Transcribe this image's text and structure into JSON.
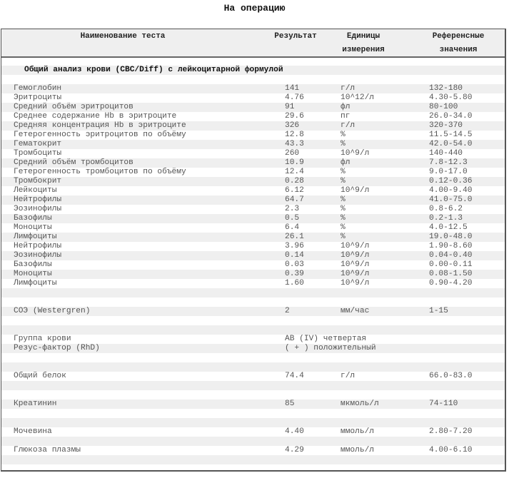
{
  "title": "На операцию",
  "header": {
    "name": "Наименование теста",
    "result": "Результат",
    "units_1": "Единицы",
    "units_2": "измерения",
    "ref_1": "Референсные",
    "ref_2": "значения"
  },
  "rows": [
    {},
    {
      "section": "Общий анализ крови (CBC/Diff) с лейкоцитарной формулой"
    },
    {},
    {
      "name": "Гемоглобин",
      "result": "141",
      "unit": "г/л",
      "ref": "132-180"
    },
    {
      "name": "Эритроциты",
      "result": "4.76",
      "unit": "10^12/л",
      "ref": "4.30-5.80"
    },
    {
      "name": "Средний объём эритроцитов",
      "result": "91",
      "unit": "фл",
      "ref": "80-100"
    },
    {
      "name": "Среднее содержание Hb в эритроците",
      "result": "29.6",
      "unit": "пг",
      "ref": "26.0-34.0"
    },
    {
      "name": "Средняя концентрация Hb в эритроците",
      "result": "326",
      "unit": "г/л",
      "ref": "320-370"
    },
    {
      "name": "Гетерогенность эритроцитов по объёму",
      "result": "12.8",
      "unit": "%",
      "ref": "11.5-14.5"
    },
    {
      "name": "Гематокрит",
      "result": "43.3",
      "unit": "%",
      "ref": "42.0-54.0"
    },
    {
      "name": "Тромбоциты",
      "result": "260",
      "unit": "10^9/л",
      "ref": "140-440"
    },
    {
      "name": "Средний объём тромбоцитов",
      "result": "10.9",
      "unit": "фл",
      "ref": "7.8-12.3"
    },
    {
      "name": "Гетерогенность тромбоцитов по объёму",
      "result": "12.4",
      "unit": "%",
      "ref": "9.0-17.0"
    },
    {
      "name": "Тромбокрит",
      "result": "0.28",
      "unit": "%",
      "ref": "0.12-0.36"
    },
    {
      "name": "Лейкоциты",
      "result": "6.12",
      "unit": "10^9/л",
      "ref": "4.00-9.40"
    },
    {
      "name": "Нейтрофилы",
      "result": "64.7",
      "unit": "%",
      "ref": "41.0-75.0"
    },
    {
      "name": "Эозинофилы",
      "result": "2.3",
      "unit": "%",
      "ref": "0.8-6.2"
    },
    {
      "name": "Базофилы",
      "result": "0.5",
      "unit": "%",
      "ref": "0.2-1.3"
    },
    {
      "name": "Моноциты",
      "result": "6.4",
      "unit": "%",
      "ref": "4.0-12.5"
    },
    {
      "name": "Лимфоциты",
      "result": "26.1",
      "unit": "%",
      "ref": "19.0-48.0"
    },
    {
      "name": "Нейтрофилы",
      "result": "3.96",
      "unit": "10^9/л",
      "ref": "1.90-8.60"
    },
    {
      "name": "Эозинофилы",
      "result": "0.14",
      "unit": "10^9/л",
      "ref": "0.04-0.40"
    },
    {
      "name": "Базофилы",
      "result": "0.03",
      "unit": "10^9/л",
      "ref": "0.00-0.11"
    },
    {
      "name": "Моноциты",
      "result": "0.39",
      "unit": "10^9/л",
      "ref": "0.08-1.50"
    },
    {
      "name": "Лимфоциты",
      "result": "1.60",
      "unit": "10^9/л",
      "ref": "0.90-4.20"
    },
    {},
    {},
    {
      "name": "СОЭ (Westergren)",
      "result": "2",
      "unit": "мм/час",
      "ref": "1-15"
    },
    {},
    {},
    {
      "name": "Группа крови",
      "result": "AB (IV) четвертая"
    },
    {
      "name": "Резус-фактор (RhD)",
      "result": "( + ) положительный"
    },
    {},
    {},
    {
      "name": "Общий белок",
      "result": "74.4",
      "unit": "г/л",
      "ref": "66.0-83.0"
    },
    {},
    {},
    {
      "name": "Креатинин",
      "result": "85",
      "unit": "мкмоль/л",
      "ref": "74-110"
    },
    {},
    {},
    {
      "name": "Мочевина",
      "result": "4.40",
      "unit": "ммоль/л",
      "ref": "2.80-7.20"
    },
    {},
    {
      "name": "Глюкоза плазмы",
      "result": "4.29",
      "unit": "ммоль/л",
      "ref": "4.00-6.10"
    },
    {},
    {}
  ]
}
